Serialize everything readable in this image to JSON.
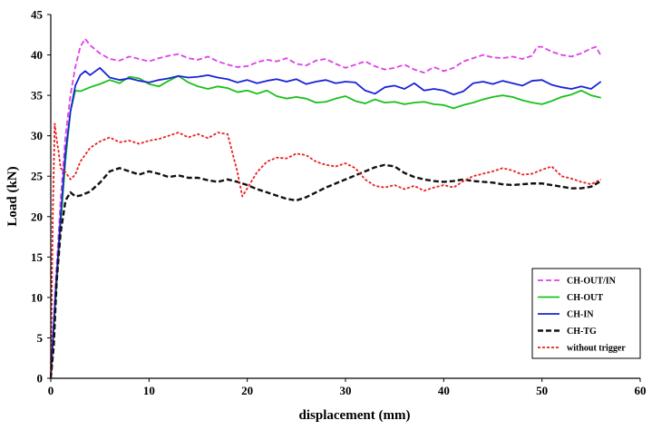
{
  "chart_data": {
    "type": "line",
    "xlabel": "displacement (mm)",
    "ylabel": "Load (kN)",
    "xlim": [
      0,
      60
    ],
    "ylim": [
      0,
      45
    ],
    "x_ticks": [
      0,
      10,
      20,
      30,
      40,
      50,
      60
    ],
    "y_ticks": [
      0,
      5,
      10,
      15,
      20,
      25,
      30,
      35,
      40,
      45
    ],
    "grid": false,
    "legend_position": "bottom-right",
    "series": [
      {
        "name": "CH-OUT/IN",
        "color": "#e040e8",
        "dash": "dashed",
        "points": [
          [
            0,
            0
          ],
          [
            0.5,
            12
          ],
          [
            1,
            22
          ],
          [
            1.5,
            30
          ],
          [
            2,
            35
          ],
          [
            2.5,
            38.5
          ],
          [
            3,
            41
          ],
          [
            3.5,
            42
          ],
          [
            4,
            41.2
          ],
          [
            5,
            40.2
          ],
          [
            6,
            39.5
          ],
          [
            7,
            39.3
          ],
          [
            8,
            39.8
          ],
          [
            9,
            39.5
          ],
          [
            10,
            39.2
          ],
          [
            11,
            39.6
          ],
          [
            12,
            39.9
          ],
          [
            13,
            40.1
          ],
          [
            14,
            39.6
          ],
          [
            15,
            39.4
          ],
          [
            16,
            39.8
          ],
          [
            17,
            39.2
          ],
          [
            18,
            38.8
          ],
          [
            19,
            38.5
          ],
          [
            20,
            38.6
          ],
          [
            21,
            39.1
          ],
          [
            22,
            39.4
          ],
          [
            23,
            39.2
          ],
          [
            24,
            39.6
          ],
          [
            25,
            38.9
          ],
          [
            26,
            38.7
          ],
          [
            27,
            39.3
          ],
          [
            28,
            39.5
          ],
          [
            29,
            38.9
          ],
          [
            30,
            38.4
          ],
          [
            31,
            38.8
          ],
          [
            32,
            39.2
          ],
          [
            33,
            38.6
          ],
          [
            34,
            38.2
          ],
          [
            35,
            38.4
          ],
          [
            36,
            38.8
          ],
          [
            37,
            38.2
          ],
          [
            38,
            37.8
          ],
          [
            39,
            38.5
          ],
          [
            40,
            38.0
          ],
          [
            41,
            38.4
          ],
          [
            42,
            39.2
          ],
          [
            43,
            39.6
          ],
          [
            44,
            40.0
          ],
          [
            45,
            39.7
          ],
          [
            46,
            39.6
          ],
          [
            47,
            39.8
          ],
          [
            48,
            39.5
          ],
          [
            49,
            39.9
          ],
          [
            49.5,
            41.0
          ],
          [
            50,
            41.0
          ],
          [
            51,
            40.4
          ],
          [
            52,
            40.0
          ],
          [
            53,
            39.8
          ],
          [
            54,
            40.2
          ],
          [
            55,
            40.8
          ],
          [
            55.5,
            41.0
          ],
          [
            56,
            39.9
          ]
        ]
      },
      {
        "name": "CH-OUT",
        "color": "#19c01a",
        "dash": "solid",
        "points": [
          [
            0,
            0
          ],
          [
            0.5,
            10
          ],
          [
            1,
            19
          ],
          [
            1.5,
            27
          ],
          [
            2,
            33
          ],
          [
            2.5,
            35.6
          ],
          [
            3,
            35.5
          ],
          [
            4,
            36
          ],
          [
            5,
            36.4
          ],
          [
            6,
            36.9
          ],
          [
            7,
            36.5
          ],
          [
            8,
            37.3
          ],
          [
            9,
            37.1
          ],
          [
            10,
            36.4
          ],
          [
            11,
            36.1
          ],
          [
            12,
            36.8
          ],
          [
            13,
            37.4
          ],
          [
            14,
            36.6
          ],
          [
            15,
            36.1
          ],
          [
            16,
            35.8
          ],
          [
            17,
            36.1
          ],
          [
            18,
            35.9
          ],
          [
            19,
            35.4
          ],
          [
            20,
            35.6
          ],
          [
            21,
            35.2
          ],
          [
            22,
            35.6
          ],
          [
            23,
            34.9
          ],
          [
            24,
            34.6
          ],
          [
            25,
            34.8
          ],
          [
            26,
            34.6
          ],
          [
            27,
            34.1
          ],
          [
            28,
            34.2
          ],
          [
            29,
            34.6
          ],
          [
            30,
            34.9
          ],
          [
            31,
            34.3
          ],
          [
            32,
            34.0
          ],
          [
            33,
            34.5
          ],
          [
            34,
            34.1
          ],
          [
            35,
            34.2
          ],
          [
            36,
            33.9
          ],
          [
            37,
            34.1
          ],
          [
            38,
            34.2
          ],
          [
            39,
            33.9
          ],
          [
            40,
            33.8
          ],
          [
            41,
            33.4
          ],
          [
            42,
            33.8
          ],
          [
            43,
            34.1
          ],
          [
            44,
            34.5
          ],
          [
            45,
            34.8
          ],
          [
            46,
            35.0
          ],
          [
            47,
            34.8
          ],
          [
            48,
            34.4
          ],
          [
            49,
            34.1
          ],
          [
            50,
            33.9
          ],
          [
            51,
            34.3
          ],
          [
            52,
            34.8
          ],
          [
            53,
            35.1
          ],
          [
            54,
            35.6
          ],
          [
            55,
            35.0
          ],
          [
            56,
            34.7
          ]
        ]
      },
      {
        "name": "CH-IN",
        "color": "#1a22d8",
        "dash": "solid",
        "points": [
          [
            0,
            0
          ],
          [
            0.5,
            11
          ],
          [
            1,
            20
          ],
          [
            1.5,
            28
          ],
          [
            2,
            33
          ],
          [
            2.5,
            36.2
          ],
          [
            3,
            37.5
          ],
          [
            3.5,
            38
          ],
          [
            4,
            37.5
          ],
          [
            5,
            38.4
          ],
          [
            6,
            37.2
          ],
          [
            7,
            36.9
          ],
          [
            8,
            37.1
          ],
          [
            9,
            36.8
          ],
          [
            10,
            36.6
          ],
          [
            11,
            36.9
          ],
          [
            12,
            37.1
          ],
          [
            13,
            37.4
          ],
          [
            14,
            37.2
          ],
          [
            15,
            37.3
          ],
          [
            16,
            37.5
          ],
          [
            17,
            37.2
          ],
          [
            18,
            37.0
          ],
          [
            19,
            36.6
          ],
          [
            20,
            36.9
          ],
          [
            21,
            36.5
          ],
          [
            22,
            36.8
          ],
          [
            23,
            37.0
          ],
          [
            24,
            36.7
          ],
          [
            25,
            37.0
          ],
          [
            26,
            36.4
          ],
          [
            27,
            36.7
          ],
          [
            28,
            36.9
          ],
          [
            29,
            36.5
          ],
          [
            30,
            36.7
          ],
          [
            31,
            36.6
          ],
          [
            32,
            35.6
          ],
          [
            33,
            35.2
          ],
          [
            34,
            36.0
          ],
          [
            35,
            36.2
          ],
          [
            36,
            35.8
          ],
          [
            37,
            36.5
          ],
          [
            38,
            35.6
          ],
          [
            39,
            35.8
          ],
          [
            40,
            35.6
          ],
          [
            41,
            35.1
          ],
          [
            42,
            35.5
          ],
          [
            43,
            36.5
          ],
          [
            44,
            36.7
          ],
          [
            45,
            36.4
          ],
          [
            46,
            36.8
          ],
          [
            47,
            36.5
          ],
          [
            48,
            36.2
          ],
          [
            49,
            36.8
          ],
          [
            50,
            36.9
          ],
          [
            51,
            36.3
          ],
          [
            52,
            36.0
          ],
          [
            53,
            35.8
          ],
          [
            54,
            36.1
          ],
          [
            55,
            35.8
          ],
          [
            56,
            36.7
          ]
        ]
      },
      {
        "name": "CH-TG",
        "color": "#111111",
        "dash": "dashed",
        "points": [
          [
            0,
            0
          ],
          [
            0.3,
            4
          ],
          [
            0.6,
            12
          ],
          [
            1,
            18
          ],
          [
            1.5,
            22
          ],
          [
            2,
            23
          ],
          [
            2.5,
            22.5
          ],
          [
            3,
            22.6
          ],
          [
            4,
            23.1
          ],
          [
            5,
            24.2
          ],
          [
            6,
            25.6
          ],
          [
            7,
            26.0
          ],
          [
            8,
            25.6
          ],
          [
            9,
            25.2
          ],
          [
            10,
            25.6
          ],
          [
            11,
            25.3
          ],
          [
            12,
            24.9
          ],
          [
            13,
            25.1
          ],
          [
            14,
            24.8
          ],
          [
            15,
            24.8
          ],
          [
            16,
            24.5
          ],
          [
            17,
            24.3
          ],
          [
            18,
            24.6
          ],
          [
            19,
            24.3
          ],
          [
            20,
            23.9
          ],
          [
            21,
            23.4
          ],
          [
            22,
            23.0
          ],
          [
            23,
            22.6
          ],
          [
            24,
            22.2
          ],
          [
            25,
            22.0
          ],
          [
            26,
            22.4
          ],
          [
            27,
            23.0
          ],
          [
            28,
            23.6
          ],
          [
            29,
            24.1
          ],
          [
            30,
            24.6
          ],
          [
            31,
            25.1
          ],
          [
            32,
            25.6
          ],
          [
            33,
            26.1
          ],
          [
            34,
            26.4
          ],
          [
            35,
            26.2
          ],
          [
            36,
            25.4
          ],
          [
            37,
            24.9
          ],
          [
            38,
            24.6
          ],
          [
            39,
            24.4
          ],
          [
            40,
            24.3
          ],
          [
            41,
            24.4
          ],
          [
            42,
            24.6
          ],
          [
            43,
            24.4
          ],
          [
            44,
            24.3
          ],
          [
            45,
            24.2
          ],
          [
            46,
            24.0
          ],
          [
            47,
            23.9
          ],
          [
            48,
            24.0
          ],
          [
            49,
            24.1
          ],
          [
            50,
            24.1
          ],
          [
            51,
            23.9
          ],
          [
            52,
            23.7
          ],
          [
            53,
            23.5
          ],
          [
            54,
            23.5
          ],
          [
            55,
            23.7
          ],
          [
            56,
            24.4
          ]
        ]
      },
      {
        "name": "without trigger",
        "color": "#e82020",
        "dash": "dotted",
        "points": [
          [
            0,
            0
          ],
          [
            0.2,
            20
          ],
          [
            0.4,
            31.5
          ],
          [
            0.6,
            29.5
          ],
          [
            0.8,
            28
          ],
          [
            1,
            26
          ],
          [
            1.5,
            25.5
          ],
          [
            2,
            24.6
          ],
          [
            2.5,
            25.2
          ],
          [
            3,
            26.8
          ],
          [
            4,
            28.5
          ],
          [
            5,
            29.3
          ],
          [
            6,
            29.8
          ],
          [
            7,
            29.2
          ],
          [
            8,
            29.4
          ],
          [
            9,
            29.0
          ],
          [
            10,
            29.4
          ],
          [
            11,
            29.6
          ],
          [
            12,
            30.0
          ],
          [
            13,
            30.4
          ],
          [
            14,
            29.8
          ],
          [
            15,
            30.2
          ],
          [
            16,
            29.7
          ],
          [
            17,
            30.4
          ],
          [
            18,
            30.2
          ],
          [
            19,
            25.5
          ],
          [
            19.5,
            22.5
          ],
          [
            20,
            23.5
          ],
          [
            21,
            25.5
          ],
          [
            22,
            26.8
          ],
          [
            23,
            27.3
          ],
          [
            24,
            27.2
          ],
          [
            25,
            27.8
          ],
          [
            26,
            27.6
          ],
          [
            27,
            26.8
          ],
          [
            28,
            26.4
          ],
          [
            29,
            26.2
          ],
          [
            30,
            26.6
          ],
          [
            31,
            26.0
          ],
          [
            32,
            24.6
          ],
          [
            33,
            23.8
          ],
          [
            34,
            23.6
          ],
          [
            35,
            23.9
          ],
          [
            36,
            23.4
          ],
          [
            37,
            23.8
          ],
          [
            38,
            23.2
          ],
          [
            39,
            23.6
          ],
          [
            40,
            23.9
          ],
          [
            41,
            23.6
          ],
          [
            42,
            24.4
          ],
          [
            43,
            25.0
          ],
          [
            44,
            25.3
          ],
          [
            45,
            25.6
          ],
          [
            46,
            26.0
          ],
          [
            47,
            25.7
          ],
          [
            48,
            25.2
          ],
          [
            49,
            25.3
          ],
          [
            50,
            25.8
          ],
          [
            51,
            26.2
          ],
          [
            52,
            25.0
          ],
          [
            53,
            24.7
          ],
          [
            54,
            24.3
          ],
          [
            55,
            24.0
          ],
          [
            56,
            24.6
          ]
        ]
      }
    ]
  }
}
